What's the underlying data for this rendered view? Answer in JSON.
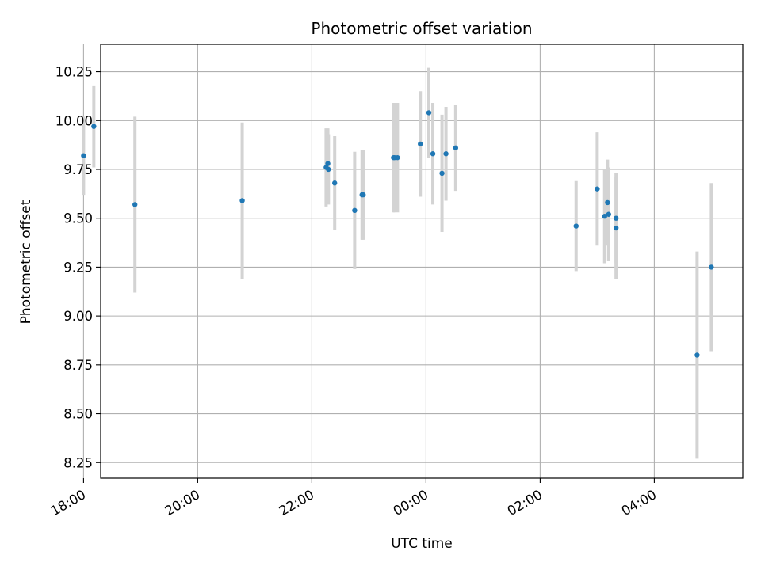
{
  "chart_data": {
    "type": "scatter",
    "title": "Photometric offset variation",
    "xlabel": "UTC time",
    "ylabel": "Photometric offset",
    "grid": true,
    "x_unit": "hours since 00:00 UTC (negative = previous day)",
    "xlim": [
      -5.7,
      5.55
    ],
    "ylim": [
      8.17,
      10.39
    ],
    "x_ticks": [
      {
        "value": -6,
        "label": "18:00"
      },
      {
        "value": -4,
        "label": "20:00"
      },
      {
        "value": -2,
        "label": "22:00"
      },
      {
        "value": 0,
        "label": "00:00"
      },
      {
        "value": 2,
        "label": "02:00"
      },
      {
        "value": 4,
        "label": "04:00"
      }
    ],
    "y_ticks": [
      {
        "value": 8.25,
        "label": "8.25"
      },
      {
        "value": 8.5,
        "label": "8.50"
      },
      {
        "value": 8.75,
        "label": "8.75"
      },
      {
        "value": 9.0,
        "label": "9.00"
      },
      {
        "value": 9.25,
        "label": "9.25"
      },
      {
        "value": 9.5,
        "label": "9.50"
      },
      {
        "value": 9.75,
        "label": "9.75"
      },
      {
        "value": 10.0,
        "label": "10.00"
      },
      {
        "value": 10.25,
        "label": "10.25"
      }
    ],
    "colors": {
      "point": "#1f77b4",
      "errorbar": "#d3d3d3",
      "grid": "#b0b0b0",
      "axis": "#000000"
    },
    "points": [
      {
        "x": -6.0,
        "y": 9.82,
        "err": 0.2
      },
      {
        "x": -5.82,
        "y": 9.97,
        "err": 0.21
      },
      {
        "x": -5.1,
        "y": 9.57,
        "err": 0.45
      },
      {
        "x": -3.22,
        "y": 9.59,
        "err": 0.4
      },
      {
        "x": -1.72,
        "y": 9.78,
        "err": 0.18
      },
      {
        "x": -1.71,
        "y": 9.75,
        "err": 0.18
      },
      {
        "x": -1.6,
        "y": 9.68,
        "err": 0.24
      },
      {
        "x": -1.75,
        "y": 9.76,
        "err": 0.2
      },
      {
        "x": -1.25,
        "y": 9.54,
        "err": 0.3
      },
      {
        "x": -1.12,
        "y": 9.62,
        "err": 0.23
      },
      {
        "x": -1.1,
        "y": 9.62,
        "err": 0.23
      },
      {
        "x": -0.5,
        "y": 9.81,
        "err": 0.28
      },
      {
        "x": -0.57,
        "y": 9.81,
        "err": 0.28
      },
      {
        "x": -0.55,
        "y": 9.81,
        "err": 0.28
      },
      {
        "x": -0.1,
        "y": 9.88,
        "err": 0.27
      },
      {
        "x": 0.05,
        "y": 10.04,
        "err": 0.23
      },
      {
        "x": 0.12,
        "y": 9.83,
        "err": 0.26
      },
      {
        "x": 0.28,
        "y": 9.73,
        "err": 0.3
      },
      {
        "x": 0.35,
        "y": 9.83,
        "err": 0.24
      },
      {
        "x": 0.52,
        "y": 9.86,
        "err": 0.22
      },
      {
        "x": 2.63,
        "y": 9.46,
        "err": 0.23
      },
      {
        "x": 3.0,
        "y": 9.65,
        "err": 0.29
      },
      {
        "x": 3.13,
        "y": 9.51,
        "err": 0.24
      },
      {
        "x": 3.18,
        "y": 9.58,
        "err": 0.22
      },
      {
        "x": 3.2,
        "y": 9.52,
        "err": 0.24
      },
      {
        "x": 3.33,
        "y": 9.5,
        "err": 0.23
      },
      {
        "x": 3.33,
        "y": 9.45,
        "err": 0.26
      },
      {
        "x": 4.75,
        "y": 8.8,
        "err": 0.53
      },
      {
        "x": 5.0,
        "y": 9.25,
        "err": 0.43
      }
    ]
  }
}
